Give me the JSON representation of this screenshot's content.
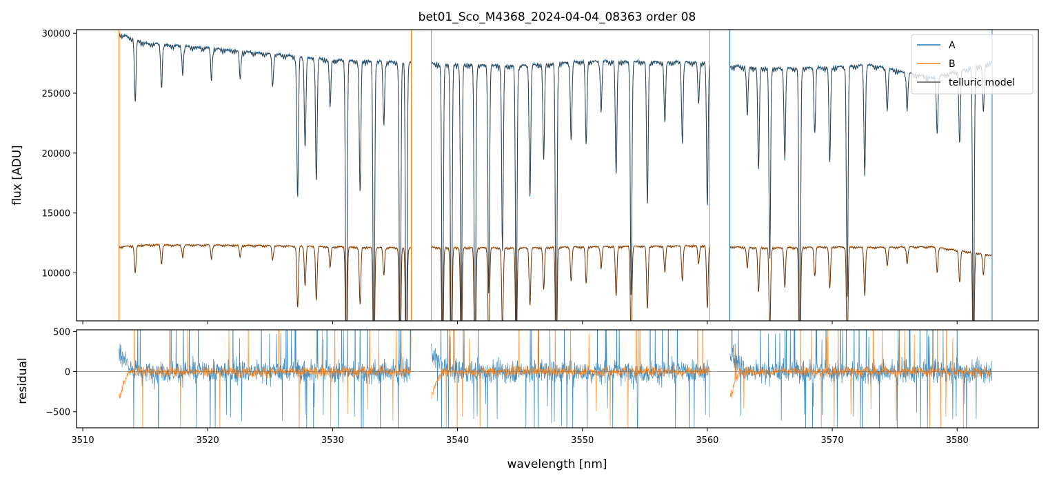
{
  "title": "bet01_Sco_M4368_2024-04-04_08363  order 08",
  "chart_data": [
    {
      "type": "line",
      "panel": "top",
      "xlabel": "",
      "ylabel": "flux [ADU]",
      "xlim": [
        3509.5,
        3586.5
      ],
      "ylim": [
        6000,
        30300
      ],
      "x_ticks": [
        3510,
        3520,
        3530,
        3540,
        3550,
        3560,
        3570,
        3580
      ],
      "y_ticks": [
        10000,
        15000,
        20000,
        25000,
        30000
      ],
      "y_tick_labels": [
        "10000",
        "15000",
        "20000",
        "25000",
        "30000"
      ],
      "legend_position": "top-right",
      "legend": [
        {
          "name": "A",
          "color": "#1f77b4"
        },
        {
          "name": "B",
          "color": "#ff7f0e"
        },
        {
          "name": "telluric model",
          "color": "#555555"
        }
      ],
      "segments": [
        [
          3512.9,
          3536.3
        ],
        [
          3537.9,
          3560.2
        ],
        [
          3561.8,
          3582.8
        ]
      ],
      "vertical_lines": [
        {
          "x": 3512.9,
          "color": "#ff7f0e"
        },
        {
          "x": 3536.3,
          "color": "#ff7f0e"
        },
        {
          "x": 3537.9,
          "color": "#ff7f0e"
        },
        {
          "x": 3560.2,
          "color": "#ff7f0e"
        },
        {
          "x": 3561.8,
          "color": "#1f77b4"
        },
        {
          "x": 3582.8,
          "color": "#1f77b4"
        }
      ],
      "series": [
        {
          "name": "A",
          "color": "#1f77b4",
          "continuum_x": [
            3512.9,
            3515,
            3520,
            3525,
            3530,
            3536.3,
            3537.9,
            3545,
            3550,
            3560.2,
            3561.8,
            3565,
            3570,
            3573,
            3578,
            3582.8
          ],
          "continuum_y": [
            30000,
            29200,
            28800,
            28300,
            27800,
            27600,
            27500,
            27300,
            27700,
            27600,
            27300,
            27100,
            27200,
            27400,
            26300,
            27600
          ],
          "lines": [
            {
              "x": 3514.2,
              "depth": 5200
            },
            {
              "x": 3516.3,
              "depth": 3500
            },
            {
              "x": 3518.0,
              "depth": 2200
            },
            {
              "x": 3520.3,
              "depth": 2500
            },
            {
              "x": 3522.6,
              "depth": 2300
            },
            {
              "x": 3525.2,
              "depth": 2600
            },
            {
              "x": 3527.2,
              "depth": 11800
            },
            {
              "x": 3527.8,
              "depth": 7500
            },
            {
              "x": 3528.7,
              "depth": 10200
            },
            {
              "x": 3529.8,
              "depth": 4000
            },
            {
              "x": 3531.1,
              "depth": 27000
            },
            {
              "x": 3532.2,
              "depth": 11000
            },
            {
              "x": 3533.3,
              "depth": 27000
            },
            {
              "x": 3534.1,
              "depth": 5200
            },
            {
              "x": 3535.4,
              "depth": 25000
            },
            {
              "x": 3535.9,
              "depth": 27000
            },
            {
              "x": 3538.8,
              "depth": 24000
            },
            {
              "x": 3539.5,
              "depth": 27000
            },
            {
              "x": 3540.3,
              "depth": 22000
            },
            {
              "x": 3541.4,
              "depth": 27000
            },
            {
              "x": 3542.5,
              "depth": 19000
            },
            {
              "x": 3543.6,
              "depth": 15500
            },
            {
              "x": 3544.7,
              "depth": 22000
            },
            {
              "x": 3545.8,
              "depth": 11000
            },
            {
              "x": 3546.9,
              "depth": 8000
            },
            {
              "x": 3547.9,
              "depth": 27000
            },
            {
              "x": 3549.1,
              "depth": 6500
            },
            {
              "x": 3550.3,
              "depth": 7000
            },
            {
              "x": 3551.5,
              "depth": 4000
            },
            {
              "x": 3552.7,
              "depth": 9500
            },
            {
              "x": 3553.9,
              "depth": 19500
            },
            {
              "x": 3555.2,
              "depth": 12000
            },
            {
              "x": 3556.6,
              "depth": 5000
            },
            {
              "x": 3558.0,
              "depth": 6500
            },
            {
              "x": 3559.3,
              "depth": 3500
            },
            {
              "x": 3560.0,
              "depth": 12000
            },
            {
              "x": 3563.2,
              "depth": 4000
            },
            {
              "x": 3564.1,
              "depth": 8500
            },
            {
              "x": 3565.0,
              "depth": 16000
            },
            {
              "x": 3566.2,
              "depth": 7500
            },
            {
              "x": 3567.4,
              "depth": 27000
            },
            {
              "x": 3568.6,
              "depth": 5500
            },
            {
              "x": 3569.8,
              "depth": 8000
            },
            {
              "x": 3571.2,
              "depth": 19500
            },
            {
              "x": 3572.6,
              "depth": 9000
            },
            {
              "x": 3574.4,
              "depth": 3500
            },
            {
              "x": 3576.0,
              "depth": 3000
            },
            {
              "x": 3578.4,
              "depth": 4500
            },
            {
              "x": 3580.2,
              "depth": 6000
            },
            {
              "x": 3581.3,
              "depth": 24000
            },
            {
              "x": 3582.1,
              "depth": 4000
            }
          ]
        },
        {
          "name": "B",
          "color": "#ff7f0e",
          "continuum_x": [
            3512.9,
            3515,
            3520,
            3525,
            3530,
            3536.3,
            3537.9,
            3545,
            3550,
            3560.2,
            3561.8,
            3565,
            3570,
            3573,
            3578,
            3582.8
          ],
          "continuum_y": [
            12200,
            12350,
            12350,
            12300,
            12200,
            12100,
            12150,
            12100,
            12200,
            12300,
            12200,
            12100,
            12200,
            12150,
            12200,
            11500
          ],
          "depth_scale": 0.44
        },
        {
          "name": "telluric model",
          "color": "#3a3a3a",
          "note": ""
        }
      ]
    },
    {
      "type": "line",
      "panel": "bottom",
      "xlabel": "wavelength [nm]",
      "ylabel": "residual",
      "xlim": [
        3509.5,
        3586.5
      ],
      "ylim": [
        -700,
        520
      ],
      "x_ticks": [
        3510,
        3520,
        3530,
        3540,
        3550,
        3560,
        3570,
        3580
      ],
      "x_tick_labels": [
        "3510",
        "3520",
        "3530",
        "3540",
        "3550",
        "3560",
        "3570",
        "3580"
      ],
      "y_ticks": [
        -500,
        0,
        500
      ],
      "y_tick_labels": [
        "−500",
        "0",
        "500"
      ],
      "zero_line": 0,
      "series": [
        {
          "name": "A",
          "color": "#1f77b4",
          "noise_std": 120,
          "spike_fraction": 0.06
        },
        {
          "name": "B",
          "color": "#ff7f0e",
          "noise_std": 55,
          "spike_fraction": 0.02
        }
      ]
    }
  ]
}
